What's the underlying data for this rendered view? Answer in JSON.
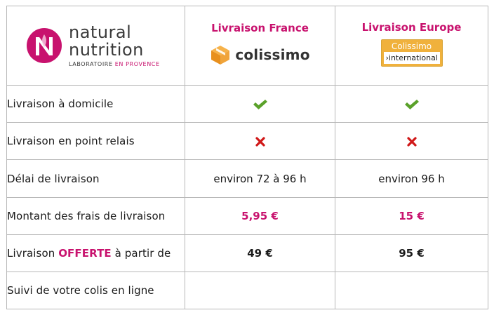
{
  "logo": {
    "line1": "natural",
    "line2": "nutrition",
    "sub_prefix": "LABORATOIRE ",
    "sub_highlight": "EN PROVENCE",
    "mark_letter": "N"
  },
  "columns": {
    "france": {
      "title": "Livraison France",
      "logo_word": "colissimo"
    },
    "europe": {
      "title": "Livraison Europe",
      "logo_top": "Colissimo",
      "logo_bottom": "›international"
    }
  },
  "rows": [
    {
      "label": "Livraison à domicile",
      "france": "check",
      "europe": "check"
    },
    {
      "label": "Livraison en point relais",
      "france": "cross",
      "europe": "cross"
    },
    {
      "label": "Délai de livraison",
      "france": "environ 72 à 96 h",
      "europe": "environ 96 h"
    },
    {
      "label": "Montant des frais de livraison",
      "france": "5,95 €",
      "europe": "15 €"
    },
    {
      "label_prefix": "Livraison ",
      "label_highlight": "OFFERTE",
      "label_suffix": " à partir de",
      "france": "49 €",
      "europe": "95 €"
    },
    {
      "label": "Suivi de votre colis en ligne",
      "france": "",
      "europe": ""
    }
  ],
  "colors": {
    "accent": "#c8126e",
    "check": "#5aa12a",
    "cross": "#d01818",
    "colissimo_orange": "#f0a43a",
    "grid": "#b8b8b8"
  }
}
